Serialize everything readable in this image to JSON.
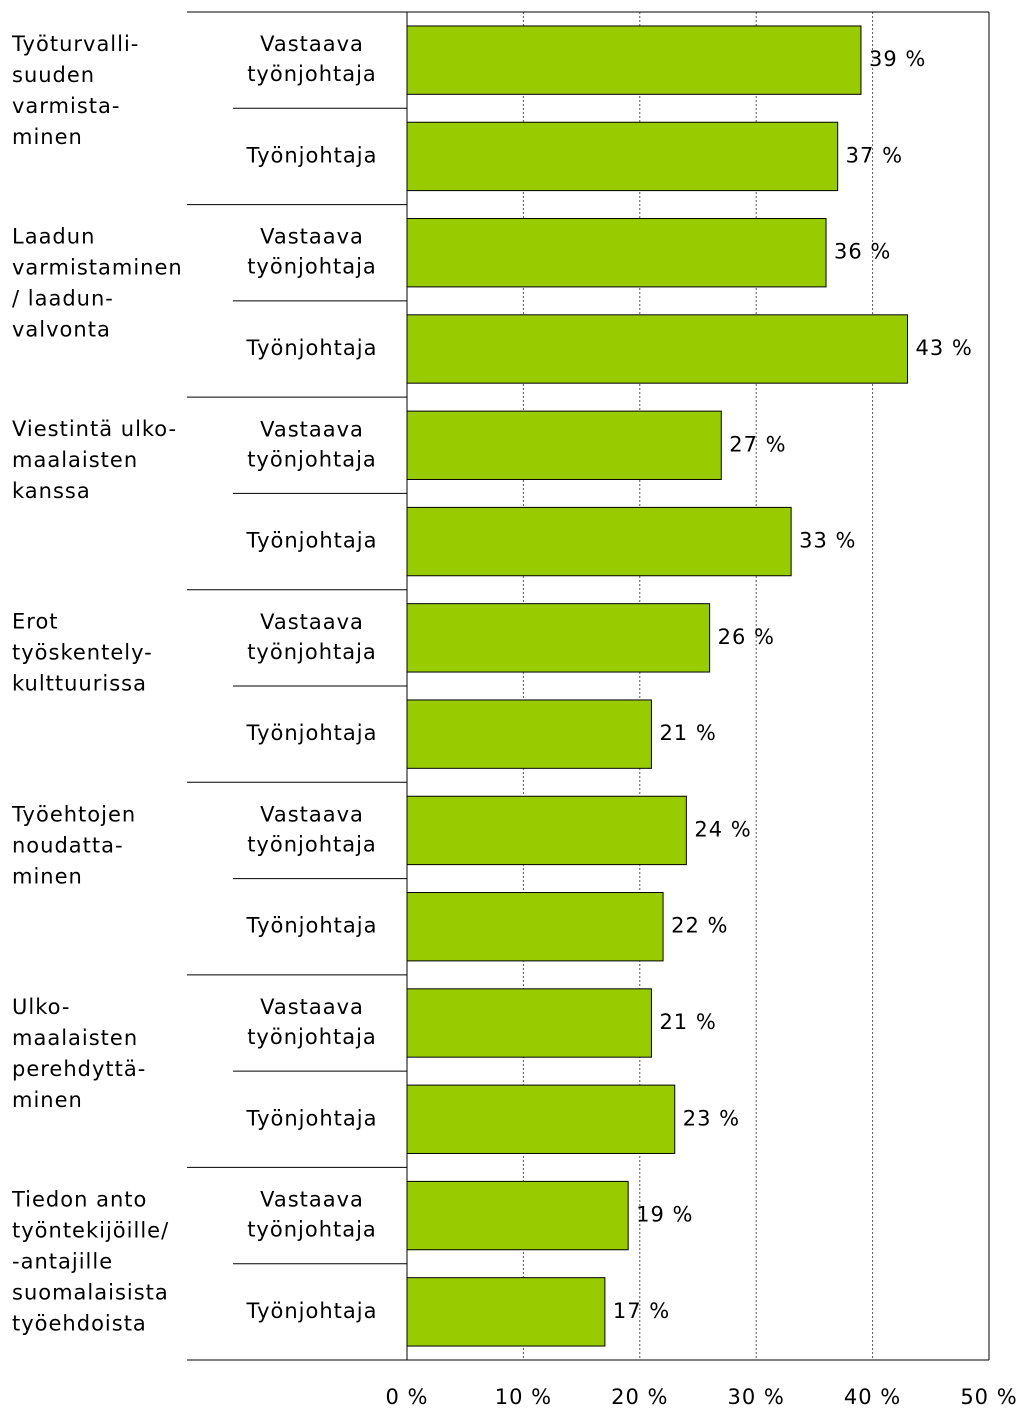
{
  "chart_data": {
    "type": "bar",
    "orientation": "horizontal",
    "color": "#99cc00",
    "groups": [
      {
        "label": [
          "Työturvalli-",
          "suuden",
          "varmista-",
          "minen"
        ],
        "categories": [
          [
            "Vastaava",
            "työnjohtaja"
          ],
          [
            "Työnjohtaja"
          ]
        ],
        "values": [
          39,
          37
        ],
        "value_labels": [
          "39 %",
          "37 %"
        ]
      },
      {
        "label": [
          "Laadun",
          "varmistaminen",
          "/ laadun-",
          "valvonta"
        ],
        "categories": [
          [
            "Vastaava",
            "työnjohtaja"
          ],
          [
            "Työnjohtaja"
          ]
        ],
        "values": [
          36,
          43
        ],
        "value_labels": [
          "36 %",
          "43 %"
        ]
      },
      {
        "label": [
          "Viestintä ulko-",
          "maalaisten",
          "kanssa"
        ],
        "categories": [
          [
            "Vastaava",
            "työnjohtaja"
          ],
          [
            "Työnjohtaja"
          ]
        ],
        "values": [
          27,
          33
        ],
        "value_labels": [
          "27 %",
          "33 %"
        ]
      },
      {
        "label": [
          "Erot",
          "työskentely-",
          "kulttuurissa"
        ],
        "categories": [
          [
            "Vastaava",
            "työnjohtaja"
          ],
          [
            "Työnjohtaja"
          ]
        ],
        "values": [
          26,
          21
        ],
        "value_labels": [
          "26 %",
          "21 %"
        ]
      },
      {
        "label": [
          "Työehtojen",
          "noudatta-",
          "minen"
        ],
        "categories": [
          [
            "Vastaava",
            "työnjohtaja"
          ],
          [
            "Työnjohtaja"
          ]
        ],
        "values": [
          24,
          22
        ],
        "value_labels": [
          "24 %",
          "22 %"
        ]
      },
      {
        "label": [
          "Ulko-",
          "maalaisten",
          "perehdyttä-",
          "minen"
        ],
        "categories": [
          [
            "Vastaava",
            "työnjohtaja"
          ],
          [
            "Työnjohtaja"
          ]
        ],
        "values": [
          21,
          23
        ],
        "value_labels": [
          "21 %",
          "23 %"
        ]
      },
      {
        "label": [
          "Tiedon anto",
          "työntekijöille/",
          "-antajille",
          "suomalaisista",
          "työehdoista"
        ],
        "categories": [
          [
            "Vastaava",
            "työnjohtaja"
          ],
          [
            "Työnjohtaja"
          ]
        ],
        "values": [
          19,
          17
        ],
        "value_labels": [
          "19 %",
          "17 %"
        ]
      }
    ],
    "xlim": [
      0,
      50
    ],
    "xticks": [
      {
        "value": 0,
        "label": "0 %"
      },
      {
        "value": 10,
        "label": "10 %"
      },
      {
        "value": 20,
        "label": "20 %"
      },
      {
        "value": 30,
        "label": "30 %"
      },
      {
        "value": 40,
        "label": "40 %"
      },
      {
        "value": 50,
        "label": "50 %"
      }
    ],
    "grid": true
  }
}
